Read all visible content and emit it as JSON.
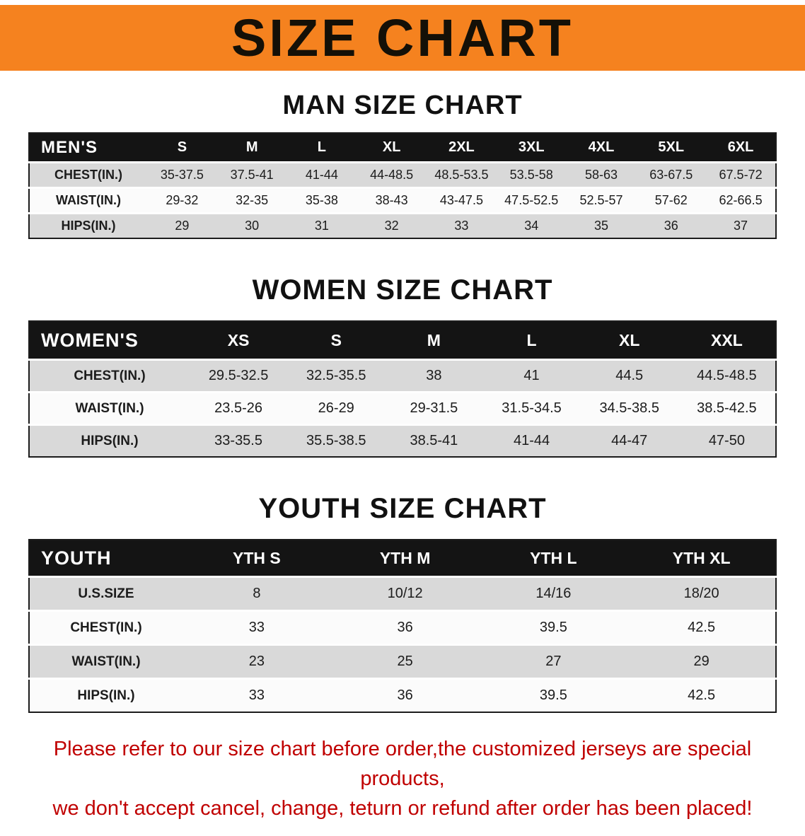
{
  "banner": {
    "title": "SIZE CHART"
  },
  "colors": {
    "banner_orange": "#f5821f",
    "header_black": "#141414",
    "row_shaded": "#d9d9d9",
    "note_red": "#c00000"
  },
  "sections": [
    {
      "heading": "MAN SIZE CHART",
      "table": {
        "header_label": "MEN'S",
        "columns": [
          "S",
          "M",
          "L",
          "XL",
          "2XL",
          "3XL",
          "4XL",
          "5XL",
          "6XL"
        ],
        "rows": [
          {
            "label": "CHEST(IN.)",
            "values": [
              "35-37.5",
              "37.5-41",
              "41-44",
              "44-48.5",
              "48.5-53.5",
              "53.5-58",
              "58-63",
              "63-67.5",
              "67.5-72"
            ]
          },
          {
            "label": "WAIST(IN.)",
            "values": [
              "29-32",
              "32-35",
              "35-38",
              "38-43",
              "43-47.5",
              "47.5-52.5",
              "52.5-57",
              "57-62",
              "62-66.5"
            ]
          },
          {
            "label": "HIPS(IN.)",
            "values": [
              "29",
              "30",
              "31",
              "32",
              "33",
              "34",
              "35",
              "36",
              "37"
            ]
          }
        ]
      }
    },
    {
      "heading": "WOMEN SIZE CHART",
      "table": {
        "header_label": "WOMEN'S",
        "columns": [
          "XS",
          "S",
          "M",
          "L",
          "XL",
          "XXL"
        ],
        "rows": [
          {
            "label": "CHEST(IN.)",
            "values": [
              "29.5-32.5",
              "32.5-35.5",
              "38",
              "41",
              "44.5",
              "44.5-48.5"
            ]
          },
          {
            "label": "WAIST(IN.)",
            "values": [
              "23.5-26",
              "26-29",
              "29-31.5",
              "31.5-34.5",
              "34.5-38.5",
              "38.5-42.5"
            ]
          },
          {
            "label": "HIPS(IN.)",
            "values": [
              "33-35.5",
              "35.5-38.5",
              "38.5-41",
              "41-44",
              "44-47",
              "47-50"
            ]
          }
        ]
      }
    },
    {
      "heading": "YOUTH SIZE CHART",
      "table": {
        "header_label": "YOUTH",
        "columns": [
          "YTH S",
          "YTH M",
          "YTH L",
          "YTH XL"
        ],
        "rows": [
          {
            "label": "U.S.SIZE",
            "values": [
              "8",
              "10/12",
              "14/16",
              "18/20"
            ]
          },
          {
            "label": "CHEST(IN.)",
            "values": [
              "33",
              "36",
              "39.5",
              "42.5"
            ]
          },
          {
            "label": "WAIST(IN.)",
            "values": [
              "23",
              "25",
              "27",
              "29"
            ]
          },
          {
            "label": "HIPS(IN.)",
            "values": [
              "33",
              "36",
              "39.5",
              "42.5"
            ]
          }
        ]
      }
    }
  ],
  "footer_note": {
    "line1": "Please refer to our size chart before order,the customized jerseys are special products,",
    "line2": "we don't accept cancel, change, teturn or refund after order has been placed!"
  }
}
